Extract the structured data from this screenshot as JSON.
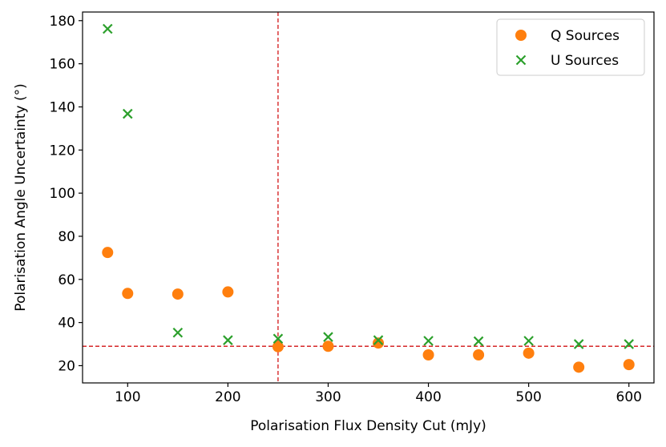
{
  "chart_data": {
    "type": "scatter",
    "title": "",
    "xlabel": "Polarisation Flux Density Cut (mJy)",
    "ylabel": "Polarisation Angle Uncertainty (°)",
    "xlim": [
      55,
      625
    ],
    "ylim": [
      12,
      184
    ],
    "xticks": [
      100,
      200,
      300,
      400,
      500,
      600
    ],
    "yticks": [
      20,
      40,
      60,
      80,
      100,
      120,
      140,
      160,
      180
    ],
    "grid": false,
    "legend_position": "top-right",
    "series": [
      {
        "name": "Q Sources",
        "marker": "circle",
        "color": "#ff7f0e",
        "x": [
          80,
          100,
          150,
          200,
          250,
          300,
          350,
          400,
          450,
          500,
          550,
          600
        ],
        "y": [
          72.5,
          53.5,
          53.2,
          54.2,
          28.8,
          29.0,
          30.5,
          25.0,
          25.0,
          25.8,
          19.3,
          20.5
        ]
      },
      {
        "name": "U Sources",
        "marker": "x",
        "color": "#2ca02c",
        "x": [
          80,
          100,
          150,
          200,
          250,
          300,
          350,
          400,
          450,
          500,
          550,
          600
        ],
        "y": [
          176.2,
          136.8,
          35.3,
          31.8,
          32.5,
          33.3,
          31.8,
          31.5,
          31.3,
          31.5,
          30.0,
          30.0
        ]
      }
    ],
    "reference_lines": [
      {
        "orientation": "vertical",
        "value": 250,
        "color": "#d62728",
        "style": "dashed"
      },
      {
        "orientation": "horizontal",
        "value": 29,
        "color": "#d62728",
        "style": "dashed"
      }
    ]
  }
}
